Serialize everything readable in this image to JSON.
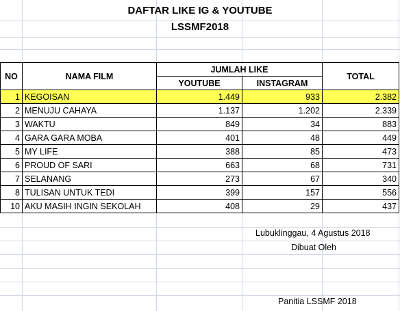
{
  "header": {
    "title_line1": "DAFTAR LIKE IG & YOUTUBE",
    "title_line2": "LSSMF2018"
  },
  "table": {
    "col_no": "NO",
    "col_name": "NAMA FILM",
    "col_group": "JUMLAH LIKE",
    "col_youtube": "YOUTUBE",
    "col_instagram": "INSTAGRAM",
    "col_total": "TOTAL",
    "rows": [
      {
        "no": "1",
        "name": "KEGOISAN",
        "youtube": "1.449",
        "instagram": "933",
        "total": "2.382",
        "highlight": true
      },
      {
        "no": "2",
        "name": "MENUJU CAHAYA",
        "youtube": "1.137",
        "instagram": "1.202",
        "total": "2.339"
      },
      {
        "no": "3",
        "name": "WAKTU",
        "youtube": "849",
        "instagram": "34",
        "total": "883"
      },
      {
        "no": "4",
        "name": "GARA GARA MOBA",
        "youtube": "401",
        "instagram": "48",
        "total": "449"
      },
      {
        "no": "5",
        "name": "MY LIFE",
        "youtube": "388",
        "instagram": "85",
        "total": "473"
      },
      {
        "no": "6",
        "name": "PROUD OF SARI",
        "youtube": "663",
        "instagram": "68",
        "total": "731"
      },
      {
        "no": "7",
        "name": "SELANANG",
        "youtube": "273",
        "instagram": "67",
        "total": "340"
      },
      {
        "no": "8",
        "name": "TULISAN UNTUK TEDI",
        "youtube": "399",
        "instagram": "157",
        "total": "556"
      },
      {
        "no": "10",
        "name": "AKU MASIH INGIN SEKOLAH",
        "youtube": "408",
        "instagram": "29",
        "total": "437"
      }
    ]
  },
  "footer": {
    "place_date": "Lubuklinggau, 4 Agustus 2018",
    "made_by": "Dibuat Oleh",
    "signer": "Panitia LSSMF 2018"
  },
  "colors": {
    "highlight": "#ffff55",
    "gridline": "#d0d7e5"
  }
}
